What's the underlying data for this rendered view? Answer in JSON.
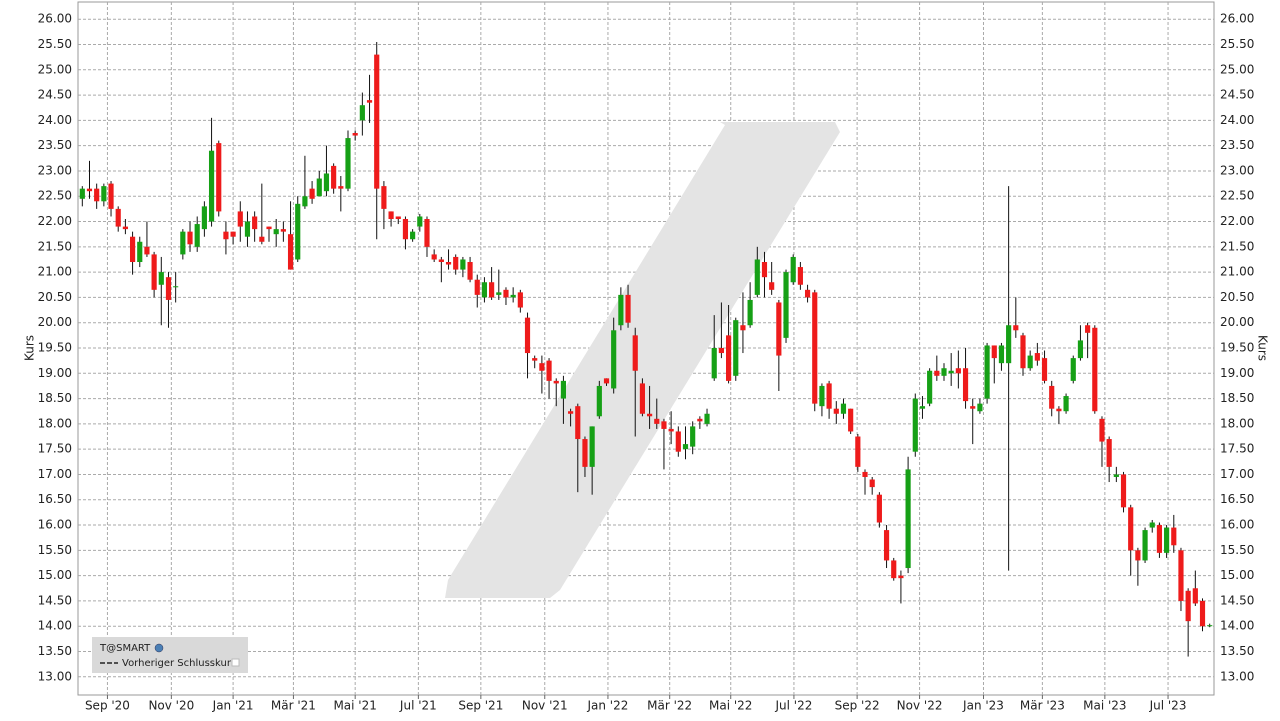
{
  "chart_data": {
    "type": "candlestick",
    "ylabel": "Kurs",
    "up_color": "#16a016",
    "down_color": "#ee1b1b",
    "grid": true,
    "legend": [
      "T@SMART",
      "Vorheriger Schlusskurs"
    ],
    "categories": [
      null,
      null,
      null,
      null,
      null,
      null,
      null,
      null,
      null,
      null,
      null,
      null,
      null,
      null,
      null,
      null,
      null,
      null,
      null,
      null,
      null,
      null,
      null,
      null,
      null,
      null,
      null,
      null,
      null,
      null,
      null,
      null,
      null,
      null,
      null,
      null,
      null,
      null,
      null,
      null,
      null,
      null,
      null,
      null,
      null,
      null,
      null,
      null,
      null,
      null,
      null,
      null,
      null,
      null,
      null,
      null,
      null,
      null,
      null,
      null,
      null,
      null,
      null,
      null,
      null,
      null,
      null,
      null,
      null,
      null,
      null,
      null,
      null,
      null,
      null,
      null,
      null,
      null,
      null,
      null,
      null,
      null,
      null,
      null,
      null,
      null,
      null,
      null,
      null,
      null,
      null,
      null,
      null,
      null,
      null,
      null,
      null,
      null,
      null,
      null,
      null,
      null,
      null,
      null,
      null,
      null,
      null,
      null,
      null,
      null,
      null,
      null,
      null,
      null,
      null,
      null,
      null,
      null,
      null,
      null,
      null,
      null,
      null,
      null,
      null,
      null,
      null,
      null,
      null,
      null,
      null,
      null,
      null,
      null,
      null,
      null,
      null,
      null,
      null,
      null,
      null,
      null,
      null,
      null,
      null,
      null,
      null,
      null,
      null,
      null,
      null,
      null,
      null,
      null,
      null,
      null,
      null,
      null
    ],
    "series": [
      {
        "name": "T@SMART",
        "open": [
          22.45,
          22.65,
          22.65,
          22.4,
          22.75,
          22.25,
          21.9,
          21.7,
          21.2,
          21.5,
          21.35,
          20.75,
          20.9,
          20.7,
          21.35,
          21.8,
          21.5,
          21.85,
          22.0,
          23.55,
          21.8,
          21.8,
          22.2,
          21.7,
          22.1,
          21.7,
          21.9,
          21.75,
          21.85,
          21.75,
          21.25,
          22.3,
          22.65,
          22.5,
          22.6,
          23.1,
          22.7,
          22.65,
          23.75,
          24.0,
          24.4,
          25.3,
          22.7,
          22.2,
          22.1,
          22.05,
          21.65,
          21.9,
          22.05,
          21.35,
          21.25,
          21.2,
          21.3,
          21.05,
          21.2,
          20.85,
          20.5,
          20.8,
          20.55,
          20.65,
          20.5,
          20.6,
          20.1,
          19.3,
          19.2,
          19.25,
          18.85,
          18.5,
          18.25,
          18.35,
          17.7,
          17.15,
          18.15,
          18.9,
          18.7,
          19.95,
          20.55,
          19.75,
          18.8,
          18.2,
          18.1,
          18.05,
          17.9,
          17.85,
          17.5,
          17.55,
          18.1,
          18.0,
          18.9,
          19.5,
          19.75,
          18.95,
          19.95,
          19.95,
          20.55,
          21.2,
          20.8,
          20.4,
          19.7,
          20.8,
          21.1,
          20.65,
          20.6,
          18.35,
          18.8,
          18.3,
          18.2,
          18.3,
          17.75,
          17.05,
          16.9,
          16.6,
          15.9,
          15.3,
          15.0,
          15.15,
          17.45,
          18.3,
          18.4,
          19.05,
          18.95,
          19.0,
          19.1,
          19.1,
          18.35,
          18.25,
          18.5,
          19.55,
          19.2,
          19.2,
          19.95,
          19.75,
          19.1,
          19.4,
          19.3,
          18.75,
          18.3,
          18.25,
          18.85,
          19.3,
          19.95,
          19.9,
          18.1,
          17.7,
          16.95,
          17.0,
          16.35,
          15.5,
          15.3,
          15.95,
          16.0,
          15.45,
          15.95,
          15.5,
          14.7,
          14.75,
          14.5,
          14.0
        ],
        "high": [
          22.7,
          23.2,
          22.75,
          22.75,
          22.8,
          22.3,
          22.05,
          21.8,
          21.7,
          22.0,
          21.4,
          21.3,
          21.0,
          21.0,
          21.85,
          22.0,
          22.1,
          22.4,
          24.05,
          23.6,
          22.0,
          21.8,
          22.4,
          22.2,
          22.2,
          22.75,
          21.9,
          22.05,
          22.0,
          22.4,
          22.5,
          23.3,
          22.8,
          23.0,
          23.5,
          23.15,
          22.9,
          23.8,
          23.8,
          24.55,
          24.9,
          25.55,
          22.8,
          22.2,
          22.1,
          22.1,
          21.85,
          22.15,
          22.1,
          21.45,
          21.3,
          21.45,
          21.35,
          21.3,
          21.3,
          20.95,
          20.9,
          21.1,
          21.05,
          20.7,
          20.7,
          20.65,
          20.2,
          19.35,
          19.35,
          19.3,
          18.9,
          18.95,
          18.3,
          18.4,
          17.75,
          17.95,
          18.85,
          18.9,
          20.1,
          20.7,
          20.75,
          19.9,
          18.9,
          18.75,
          18.5,
          18.1,
          18.25,
          17.95,
          17.95,
          18.05,
          18.15,
          18.3,
          20.15,
          20.4,
          20.35,
          20.1,
          20.6,
          20.8,
          21.5,
          21.4,
          21.2,
          20.45,
          21.05,
          21.35,
          21.2,
          20.75,
          20.65,
          18.8,
          18.85,
          18.45,
          18.5,
          18.3,
          17.8,
          17.1,
          16.95,
          16.65,
          16.0,
          15.35,
          15.1,
          17.35,
          18.6,
          18.55,
          19.1,
          19.35,
          19.2,
          19.4,
          19.45,
          19.5,
          18.5,
          18.5,
          19.6,
          19.55,
          19.6,
          22.7,
          20.5,
          19.8,
          19.45,
          19.6,
          19.45,
          18.85,
          18.35,
          18.6,
          19.35,
          19.95,
          20.0,
          19.95,
          18.15,
          17.75,
          17.15,
          17.05,
          16.4,
          15.55,
          15.95,
          16.1,
          16.05,
          16.0,
          16.2,
          15.55,
          14.75,
          15.1,
          14.55,
          14.05
        ],
        "low": [
          22.3,
          22.45,
          22.25,
          22.3,
          22.1,
          21.8,
          21.75,
          20.95,
          21.1,
          21.3,
          20.5,
          19.95,
          19.9,
          20.4,
          21.25,
          21.4,
          21.4,
          21.7,
          21.9,
          22.1,
          21.35,
          21.55,
          21.6,
          21.5,
          21.6,
          21.55,
          21.6,
          21.5,
          21.6,
          21.05,
          21.2,
          22.25,
          22.35,
          22.5,
          22.5,
          22.55,
          22.2,
          22.6,
          23.6,
          23.7,
          23.95,
          21.65,
          21.85,
          21.9,
          21.95,
          21.45,
          21.6,
          21.8,
          21.3,
          21.2,
          20.8,
          21.05,
          20.95,
          20.9,
          20.8,
          20.3,
          20.4,
          20.45,
          20.45,
          20.35,
          20.4,
          20.2,
          18.9,
          19.1,
          18.6,
          18.5,
          18.35,
          18.0,
          17.95,
          16.65,
          16.95,
          16.6,
          18.1,
          18.75,
          18.6,
          19.85,
          19.9,
          17.75,
          18.15,
          17.9,
          17.9,
          17.1,
          17.6,
          17.35,
          17.3,
          17.4,
          17.9,
          17.95,
          18.85,
          19.3,
          18.8,
          18.85,
          19.4,
          19.9,
          20.5,
          20.5,
          20.55,
          18.65,
          19.6,
          20.75,
          20.65,
          20.4,
          18.25,
          18.15,
          18.1,
          18.0,
          18.1,
          17.8,
          17.05,
          16.6,
          16.6,
          15.95,
          15.15,
          14.9,
          14.45,
          15.05,
          17.35,
          18.1,
          18.35,
          18.85,
          18.85,
          18.75,
          18.7,
          18.3,
          17.6,
          18.2,
          18.4,
          18.8,
          19.05,
          15.1,
          19.7,
          18.95,
          19.05,
          19.15,
          18.8,
          18.15,
          18.0,
          18.2,
          18.8,
          19.25,
          19.3,
          18.2,
          17.15,
          16.85,
          16.85,
          16.25,
          15.0,
          14.8,
          15.25,
          15.85,
          15.35,
          15.35,
          15.45,
          14.3,
          13.4,
          14.4,
          13.9,
          13.98
        ],
        "close": [
          22.65,
          22.6,
          22.4,
          22.7,
          22.25,
          21.9,
          21.85,
          21.2,
          21.6,
          21.35,
          20.65,
          21.0,
          20.45,
          20.72,
          21.8,
          21.55,
          21.95,
          22.3,
          23.4,
          22.2,
          21.65,
          21.7,
          21.9,
          22.0,
          21.85,
          21.6,
          21.85,
          21.85,
          21.8,
          21.05,
          22.35,
          22.5,
          22.45,
          22.85,
          22.95,
          22.65,
          22.65,
          23.65,
          23.7,
          24.3,
          24.35,
          22.65,
          22.25,
          22.05,
          22.05,
          21.65,
          21.8,
          22.1,
          21.5,
          21.25,
          21.2,
          21.15,
          21.05,
          21.25,
          20.85,
          20.55,
          20.8,
          20.5,
          20.6,
          20.5,
          20.55,
          20.3,
          19.4,
          19.25,
          19.05,
          18.85,
          18.8,
          18.85,
          18.2,
          17.7,
          17.15,
          17.95,
          18.75,
          18.8,
          19.85,
          20.55,
          20.0,
          19.05,
          18.2,
          18.15,
          18.0,
          17.9,
          17.85,
          17.45,
          17.6,
          17.95,
          18.05,
          18.2,
          19.5,
          19.4,
          18.85,
          20.05,
          19.85,
          20.45,
          21.25,
          20.9,
          20.65,
          19.35,
          21.0,
          21.3,
          20.75,
          20.5,
          18.4,
          18.75,
          18.3,
          18.2,
          18.4,
          17.85,
          17.15,
          16.95,
          16.75,
          16.05,
          15.3,
          14.95,
          14.95,
          17.1,
          18.5,
          18.35,
          19.05,
          18.95,
          19.1,
          19.05,
          19.0,
          18.45,
          18.3,
          18.4,
          19.55,
          19.3,
          19.55,
          19.95,
          19.85,
          19.1,
          19.35,
          19.25,
          18.85,
          18.3,
          18.25,
          18.55,
          19.3,
          19.65,
          19.8,
          18.25,
          17.65,
          17.15,
          17.0,
          16.35,
          15.5,
          15.3,
          15.9,
          16.05,
          15.45,
          15.95,
          15.6,
          14.5,
          14.1,
          14.45,
          14.0,
          14.02
        ]
      }
    ],
    "xlim": [
      -0.6,
      157.6
    ],
    "xticks": [
      {
        "value": 3.5,
        "label": "Sep '20"
      },
      {
        "value": 12.4,
        "label": "Nov '20"
      },
      {
        "value": 21.0,
        "label": "Jan '21"
      },
      {
        "value": 29.4,
        "label": "Mär '21"
      },
      {
        "value": 38.0,
        "label": "Mai '21"
      },
      {
        "value": 46.8,
        "label": "Jul '21"
      },
      {
        "value": 55.5,
        "label": "Sep '21"
      },
      {
        "value": 64.4,
        "label": "Nov '21"
      },
      {
        "value": 73.2,
        "label": "Jan '22"
      },
      {
        "value": 81.8,
        "label": "Mär '22"
      },
      {
        "value": 90.3,
        "label": "Mai '22"
      },
      {
        "value": 99.1,
        "label": "Jul '22"
      },
      {
        "value": 107.9,
        "label": "Sep '22"
      },
      {
        "value": 116.6,
        "label": "Nov '22"
      },
      {
        "value": 125.5,
        "label": "Jan '23"
      },
      {
        "value": 133.7,
        "label": "Mär '23"
      },
      {
        "value": 142.4,
        "label": "Mai '23"
      },
      {
        "value": 151.2,
        "label": "Jul '23"
      }
    ],
    "ylim": [
      12.64,
      26.34
    ],
    "yticks": [
      {
        "value": 13,
        "label": "13.00"
      },
      {
        "value": 13.5,
        "label": "13.50"
      },
      {
        "value": 14,
        "label": "14.00"
      },
      {
        "value": 14.5,
        "label": "14.50"
      },
      {
        "value": 15,
        "label": "15.00"
      },
      {
        "value": 15.5,
        "label": "15.50"
      },
      {
        "value": 16,
        "label": "16.00"
      },
      {
        "value": 16.5,
        "label": "16.50"
      },
      {
        "value": 17,
        "label": "17.00"
      },
      {
        "value": 17.5,
        "label": "17.50"
      },
      {
        "value": 18,
        "label": "18.00"
      },
      {
        "value": 18.5,
        "label": "18.50"
      },
      {
        "value": 19,
        "label": "19.00"
      },
      {
        "value": 19.5,
        "label": "19.50"
      },
      {
        "value": 20,
        "label": "20.00"
      },
      {
        "value": 20.5,
        "label": "20.50"
      },
      {
        "value": 21,
        "label": "21.00"
      },
      {
        "value": 21.5,
        "label": "21.50"
      },
      {
        "value": 22,
        "label": "22.00"
      },
      {
        "value": 22.5,
        "label": "22.50"
      },
      {
        "value": 23,
        "label": "23.00"
      },
      {
        "value": 23.5,
        "label": "23.50"
      },
      {
        "value": 24,
        "label": "24.00"
      },
      {
        "value": 24.5,
        "label": "24.50"
      },
      {
        "value": 25,
        "label": "25.00"
      },
      {
        "value": 25.5,
        "label": "25.50"
      },
      {
        "value": 26,
        "label": "26.00"
      }
    ]
  }
}
